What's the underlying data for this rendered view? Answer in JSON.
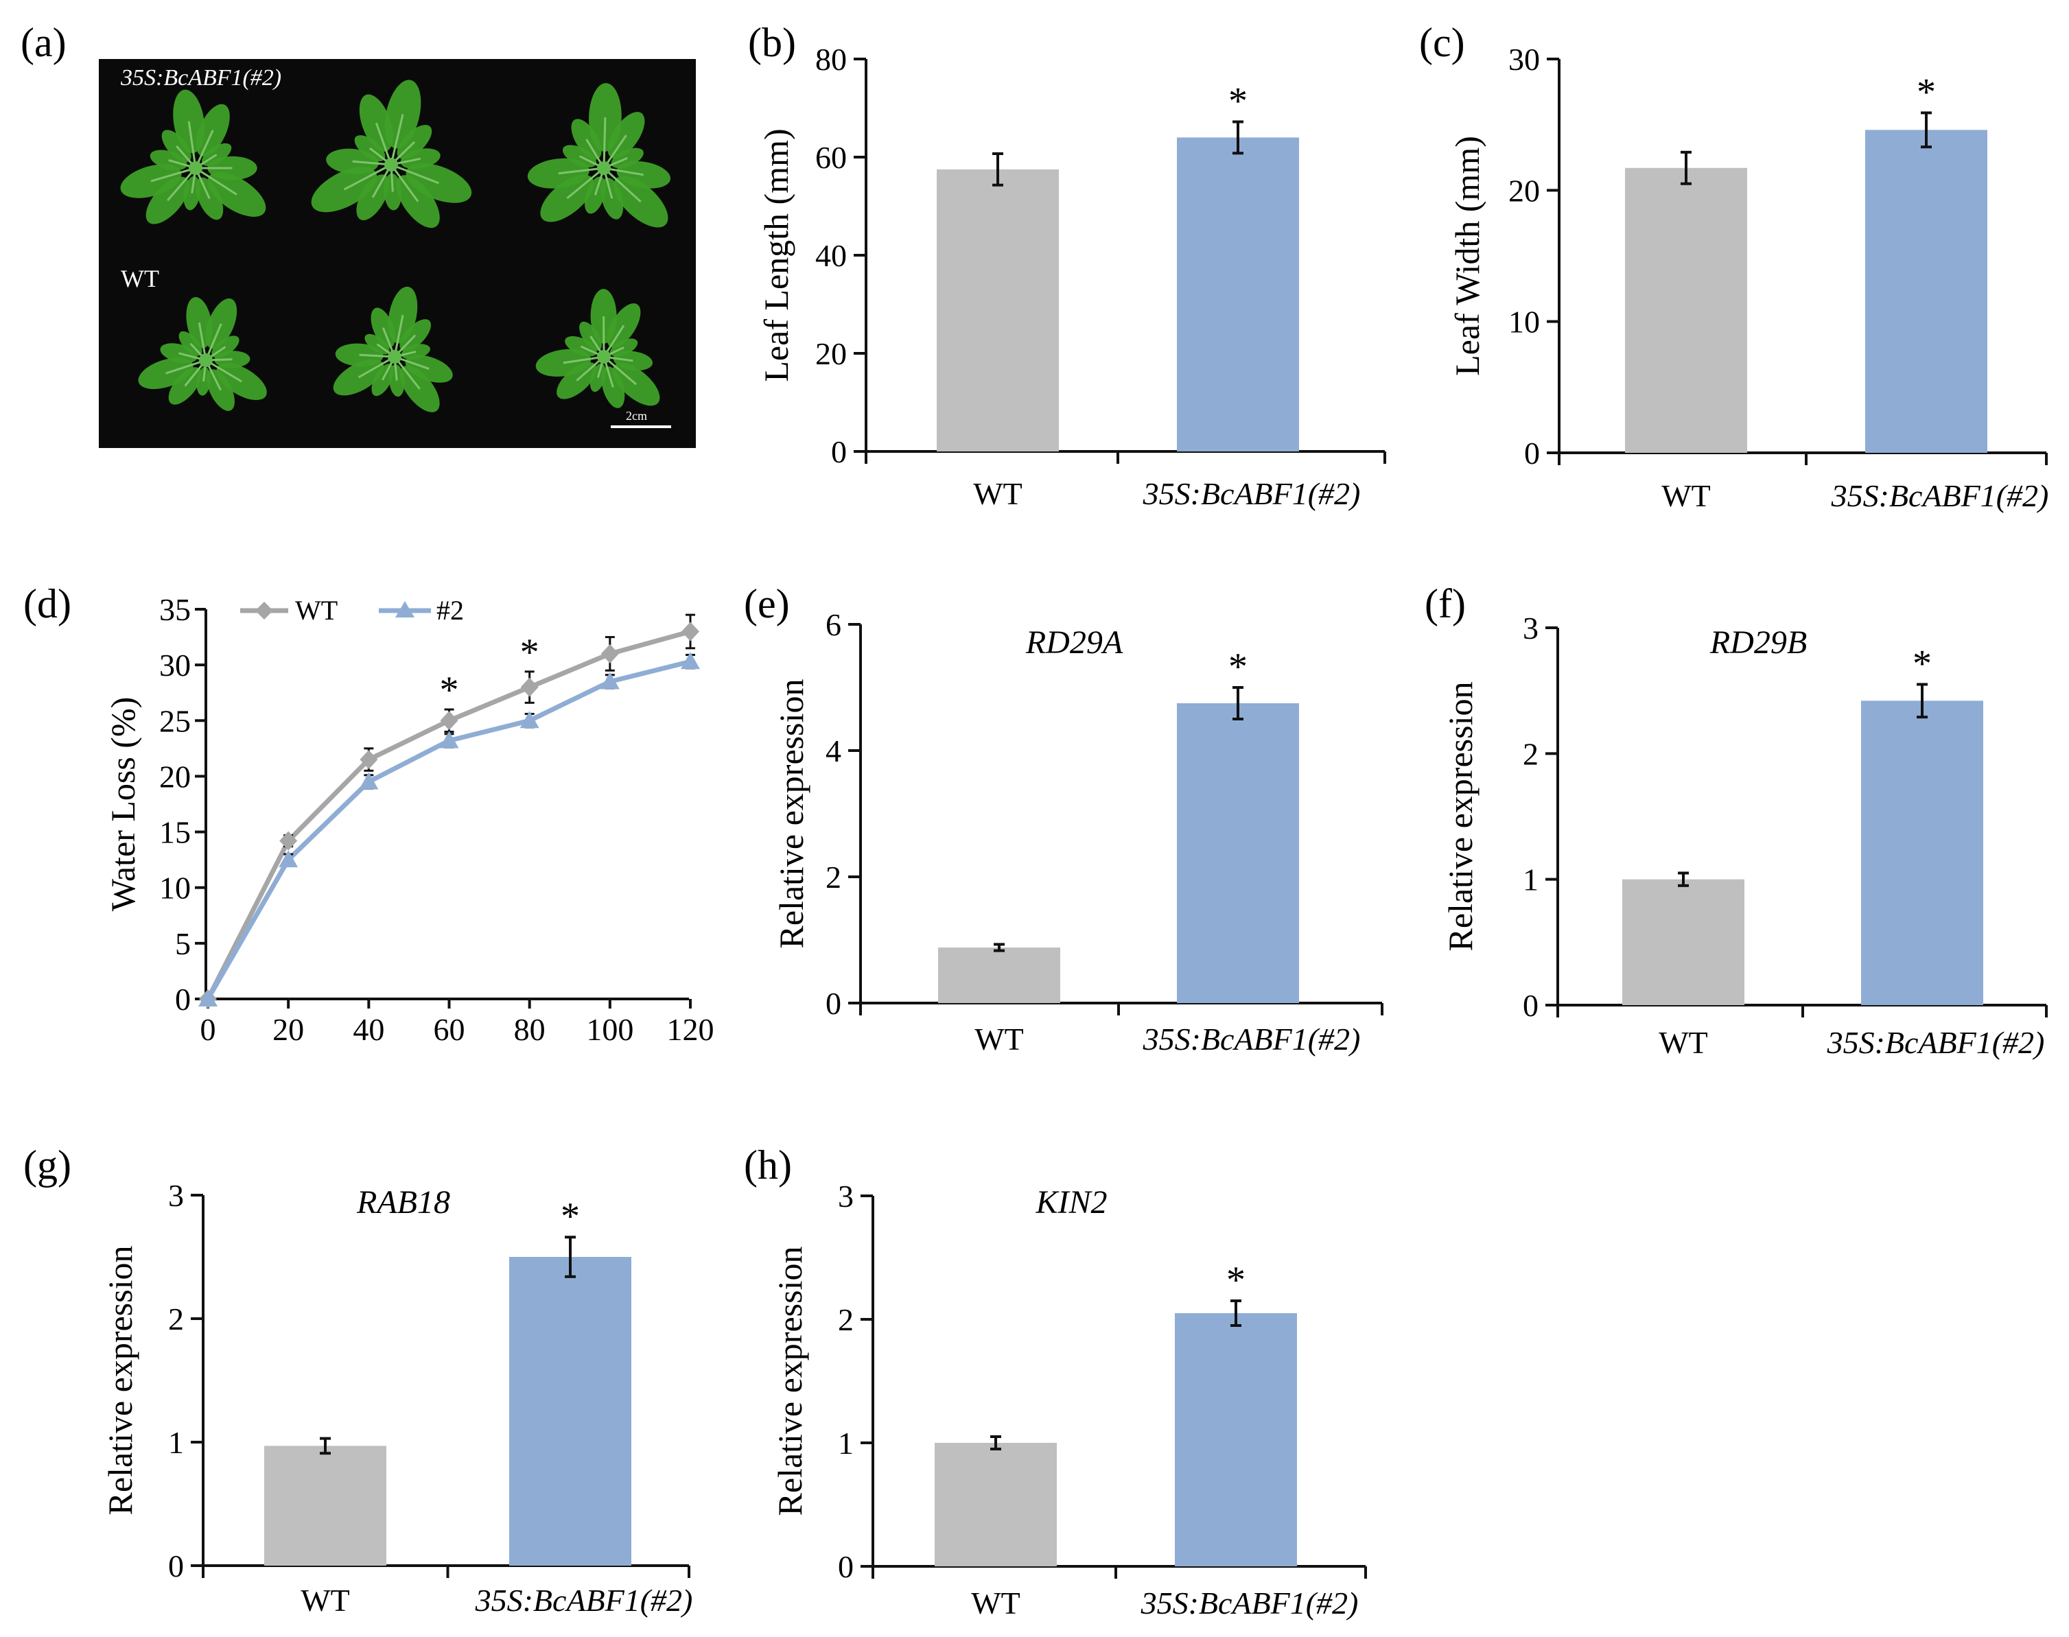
{
  "panel_a": {
    "letter": "(a)",
    "top_label": "35S:BcABF1(#2)",
    "bottom_label": "WT",
    "scale_bar": "2cm",
    "colors": {
      "background": "#0a0a0a",
      "leaf": "#3fa028"
    }
  },
  "colors": {
    "wt": "#bfbfbf",
    "transgenic": "#8fadd4",
    "wt_line": "#a6a6a6",
    "tg_line": "#8fadd4"
  },
  "chart_data": [
    {
      "id": "b",
      "letter": "(b)",
      "type": "bar",
      "title": "",
      "ylabel": "Leaf Length (mm)",
      "gene": "",
      "categories": [
        "WT",
        "35S:BcABF1(#2)"
      ],
      "values": [
        57.5,
        64
      ],
      "errors": [
        3.2,
        3.2
      ],
      "significance": [
        "",
        "*"
      ],
      "ylim": [
        0,
        80
      ],
      "yticks": [
        0,
        20,
        40,
        60,
        80
      ]
    },
    {
      "id": "c",
      "letter": "(c)",
      "type": "bar",
      "title": "",
      "ylabel": "Leaf Width (mm)",
      "gene": "",
      "categories": [
        "WT",
        "35S:BcABF1(#2)"
      ],
      "values": [
        21.7,
        24.6
      ],
      "errors": [
        1.2,
        1.3
      ],
      "significance": [
        "",
        "*"
      ],
      "ylim": [
        0,
        30
      ],
      "yticks": [
        0,
        10,
        20,
        30
      ]
    },
    {
      "id": "d",
      "letter": "(d)",
      "type": "line",
      "title": "",
      "ylabel": "Water Loss (%)",
      "x": [
        0,
        20,
        40,
        60,
        80,
        100,
        120
      ],
      "series": [
        {
          "name": "WT",
          "values": [
            0,
            14.2,
            21.5,
            25.0,
            28.0,
            31.0,
            33.0
          ],
          "errors": [
            0,
            0.5,
            1.0,
            1.0,
            1.4,
            1.5,
            1.5
          ],
          "marker": "diamond"
        },
        {
          "name": "#2",
          "values": [
            0,
            12.5,
            19.5,
            23.2,
            25.0,
            28.5,
            30.3
          ],
          "errors": [
            0,
            0.5,
            0.6,
            0.6,
            0.6,
            0.6,
            0.6
          ],
          "marker": "triangle"
        }
      ],
      "significance_x": [
        60,
        80
      ],
      "significance_label": "*",
      "xlim": [
        0,
        120
      ],
      "xticks": [
        0,
        20,
        40,
        60,
        80,
        100,
        120
      ],
      "ylim": [
        0,
        35
      ],
      "yticks": [
        0,
        5,
        10,
        15,
        20,
        25,
        30,
        35
      ],
      "legend_position": "top"
    },
    {
      "id": "e",
      "letter": "(e)",
      "type": "bar",
      "title": "",
      "ylabel": "Relative   expression",
      "gene": "RD29A",
      "categories": [
        "WT",
        "35S:BcABF1(#2)"
      ],
      "values": [
        0.88,
        4.75
      ],
      "errors": [
        0.05,
        0.25
      ],
      "significance": [
        "",
        "*"
      ],
      "ylim": [
        0,
        6
      ],
      "yticks": [
        0,
        2,
        4,
        6
      ]
    },
    {
      "id": "f",
      "letter": "(f)",
      "type": "bar",
      "title": "",
      "ylabel": "Relative   expression",
      "gene": "RD29B",
      "categories": [
        "WT",
        "35S:BcABF1(#2)"
      ],
      "values": [
        1.0,
        2.42
      ],
      "errors": [
        0.05,
        0.13
      ],
      "significance": [
        "",
        "*"
      ],
      "ylim": [
        0,
        3
      ],
      "yticks": [
        0,
        1,
        2,
        3
      ]
    },
    {
      "id": "g",
      "letter": "(g)",
      "type": "bar",
      "title": "",
      "ylabel": "Relative   expression",
      "gene": "RAB18",
      "categories": [
        "WT",
        "35S:BcABF1(#2)"
      ],
      "values": [
        0.97,
        2.5
      ],
      "errors": [
        0.06,
        0.16
      ],
      "significance": [
        "",
        "*"
      ],
      "ylim": [
        0,
        3
      ],
      "yticks": [
        0,
        1,
        2,
        3
      ]
    },
    {
      "id": "h",
      "letter": "(h)",
      "type": "bar",
      "title": "",
      "ylabel": "Relative   expression",
      "gene": "KIN2",
      "categories": [
        "WT",
        "35S:BcABF1(#2)"
      ],
      "values": [
        1.0,
        2.05
      ],
      "errors": [
        0.05,
        0.1
      ],
      "significance": [
        "",
        "*"
      ],
      "ylim": [
        0,
        3
      ],
      "yticks": [
        0,
        1,
        2,
        3
      ]
    }
  ]
}
